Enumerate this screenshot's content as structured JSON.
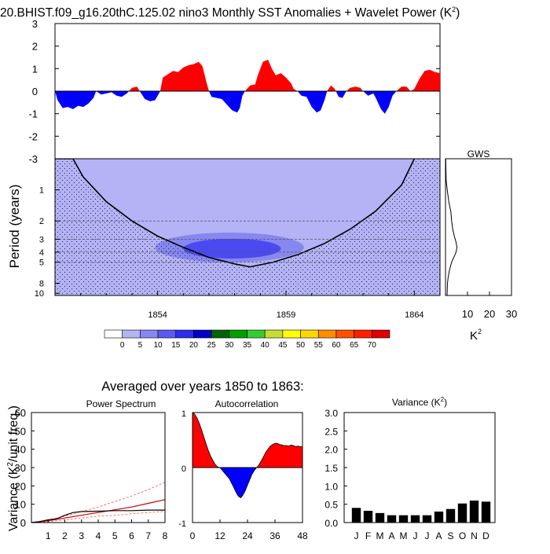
{
  "title": "20.BHIST.f09_g16.20thC.125.02 nino3 Monthly SST Anomalies + Wavelet Power (K",
  "title_sup": "2",
  "title_end": ")",
  "subtitle": "Averaged over years 1850 to 1863:",
  "chart_data": [
    {
      "id": "sst_anomaly",
      "type": "area",
      "x_range": [
        1850,
        1865
      ],
      "ylim": [
        -3,
        3
      ],
      "yticks": [
        "3",
        "2",
        "1",
        "0",
        "-1",
        "-2",
        "-3"
      ],
      "positive_color": "#ff0000",
      "negative_color": "#0000ff",
      "series": [
        [
          1850.0,
          0.0
        ],
        [
          1850.1,
          -0.4
        ],
        [
          1850.3,
          -0.75
        ],
        [
          1850.5,
          -0.7
        ],
        [
          1850.7,
          -0.8
        ],
        [
          1850.9,
          -0.65
        ],
        [
          1851.1,
          -0.7
        ],
        [
          1851.3,
          -0.55
        ],
        [
          1851.5,
          -0.3
        ],
        [
          1851.6,
          0.0
        ],
        [
          1851.8,
          -0.15
        ],
        [
          1852.0,
          -0.1
        ],
        [
          1852.2,
          -0.05
        ],
        [
          1852.4,
          -0.2
        ],
        [
          1852.6,
          -0.25
        ],
        [
          1852.8,
          -0.1
        ],
        [
          1853.0,
          0.15
        ],
        [
          1853.2,
          0.2
        ],
        [
          1853.3,
          0.0
        ],
        [
          1853.5,
          -0.35
        ],
        [
          1853.7,
          -0.45
        ],
        [
          1853.9,
          -0.4
        ],
        [
          1854.0,
          -0.2
        ],
        [
          1854.1,
          0.0
        ],
        [
          1854.2,
          0.6
        ],
        [
          1854.4,
          0.75
        ],
        [
          1854.6,
          0.9
        ],
        [
          1854.8,
          0.85
        ],
        [
          1855.0,
          1.05
        ],
        [
          1855.2,
          1.15
        ],
        [
          1855.4,
          1.2
        ],
        [
          1855.6,
          1.3
        ],
        [
          1855.75,
          1.1
        ],
        [
          1855.9,
          0.4
        ],
        [
          1856.0,
          0.0
        ],
        [
          1856.1,
          -0.25
        ],
        [
          1856.3,
          -0.3
        ],
        [
          1856.5,
          -0.35
        ],
        [
          1856.7,
          -0.6
        ],
        [
          1856.9,
          -0.85
        ],
        [
          1857.1,
          -0.95
        ],
        [
          1857.2,
          -0.75
        ],
        [
          1857.3,
          -0.2
        ],
        [
          1857.4,
          0.0
        ],
        [
          1857.6,
          0.25
        ],
        [
          1857.8,
          0.3
        ],
        [
          1857.9,
          0.7
        ],
        [
          1858.1,
          1.3
        ],
        [
          1858.3,
          1.4
        ],
        [
          1858.45,
          1.0
        ],
        [
          1858.6,
          0.7
        ],
        [
          1858.8,
          0.8
        ],
        [
          1859.0,
          0.6
        ],
        [
          1859.2,
          0.35
        ],
        [
          1859.3,
          0.1
        ],
        [
          1859.45,
          0.0
        ],
        [
          1859.6,
          -0.2
        ],
        [
          1859.8,
          -0.25
        ],
        [
          1860.0,
          -0.7
        ],
        [
          1860.2,
          -0.95
        ],
        [
          1860.35,
          -0.85
        ],
        [
          1860.5,
          -0.4
        ],
        [
          1860.6,
          0.0
        ],
        [
          1860.75,
          0.25
        ],
        [
          1860.9,
          0.1
        ],
        [
          1861.05,
          -0.25
        ],
        [
          1861.2,
          -0.3
        ],
        [
          1861.35,
          0.0
        ],
        [
          1861.5,
          0.15
        ],
        [
          1861.7,
          0.2
        ],
        [
          1861.9,
          0.15
        ],
        [
          1862.0,
          0.0
        ],
        [
          1862.2,
          -0.2
        ],
        [
          1862.4,
          -0.1
        ],
        [
          1862.5,
          -0.3
        ],
        [
          1862.7,
          -0.8
        ],
        [
          1862.85,
          -1.0
        ],
        [
          1863.0,
          -0.7
        ],
        [
          1863.15,
          -0.2
        ],
        [
          1863.3,
          0.0
        ],
        [
          1863.5,
          0.2
        ],
        [
          1863.7,
          0.2
        ],
        [
          1863.85,
          0.0
        ],
        [
          1864.0,
          0.1
        ],
        [
          1864.2,
          0.55
        ],
        [
          1864.4,
          0.9
        ],
        [
          1864.6,
          0.95
        ],
        [
          1864.8,
          0.85
        ],
        [
          1865.0,
          0.8
        ]
      ]
    },
    {
      "id": "wavelet_power",
      "type": "heatmap",
      "ylabel": "Period (years)",
      "x_range": [
        1850,
        1865
      ],
      "y_range_years": [
        0.5,
        10.5
      ],
      "y_log": true,
      "yticks": [
        1,
        2,
        3,
        4,
        5,
        8,
        10
      ],
      "xticks": [
        1854,
        1859,
        1864
      ],
      "background_level_color": "#b3b3f5",
      "cone_of_influence": [
        [
          1850.0,
          0.5
        ],
        [
          1850.7,
          0.5
        ],
        [
          1851.1,
          0.75
        ],
        [
          1852.0,
          1.3
        ],
        [
          1853.0,
          2.0
        ],
        [
          1854.0,
          2.8
        ],
        [
          1855.0,
          3.6
        ],
        [
          1856.0,
          4.5
        ],
        [
          1857.0,
          5.2
        ],
        [
          1857.6,
          5.55
        ],
        [
          1858.5,
          5.0
        ],
        [
          1859.5,
          4.2
        ],
        [
          1860.5,
          3.3
        ],
        [
          1861.5,
          2.4
        ],
        [
          1862.5,
          1.6
        ],
        [
          1863.5,
          0.9
        ],
        [
          1864.0,
          0.5
        ]
      ],
      "contours": [
        {
          "level": "5-10",
          "color": "#8787f0",
          "center": [
            1856.8,
            3.6
          ],
          "spread": [
            2.9,
            0.33
          ]
        },
        {
          "level": "10-15",
          "color": "#4a4af0",
          "center": [
            1856.9,
            3.7
          ],
          "spread": [
            1.9,
            0.22
          ]
        }
      ],
      "colorbar": {
        "labels": [
          "0",
          "5",
          "10",
          "15",
          "20",
          "25",
          "30",
          "35",
          "40",
          "45",
          "50",
          "55",
          "60",
          "65",
          "70"
        ],
        "colors": [
          "#ffffff",
          "#b3b3f5",
          "#8787f0",
          "#5a5af0",
          "#2d2df0",
          "#0000c8",
          "#006400",
          "#00a000",
          "#32cd32",
          "#c8dc32",
          "#ffff00",
          "#ffd700",
          "#ff8c00",
          "#ff5000",
          "#ff2000",
          "#e00000"
        ]
      }
    },
    {
      "id": "gws",
      "type": "line",
      "title": "GWS",
      "xlabel": "K",
      "xlabel_sup": "2",
      "xlim": [
        0,
        30
      ],
      "xticks": [
        "10",
        "20",
        "30"
      ],
      "series": [
        [
          0.5,
          0.1
        ],
        [
          0.8,
          0.3
        ],
        [
          1.0,
          0.8
        ],
        [
          1.3,
          1.5
        ],
        [
          1.6,
          2.4
        ],
        [
          2.0,
          2.8
        ],
        [
          2.4,
          3.3
        ],
        [
          2.8,
          4.0
        ],
        [
          3.2,
          4.8
        ],
        [
          3.6,
          5.2
        ],
        [
          4.0,
          4.8
        ],
        [
          4.5,
          3.8
        ],
        [
          5.0,
          2.8
        ],
        [
          6.0,
          1.8
        ],
        [
          7.0,
          1.2
        ],
        [
          8.0,
          0.9
        ],
        [
          10.5,
          0.7
        ]
      ]
    },
    {
      "id": "power_spectrum",
      "type": "line",
      "title": "Power Spectrum",
      "ylabel": "Variance (K",
      "ylabel_sup": "2",
      "ylabel_end": "/unit freq.)",
      "xlim": [
        0,
        8
      ],
      "ylim": [
        0,
        60
      ],
      "xticks": [
        "1",
        "2",
        "3",
        "4",
        "5",
        "6",
        "7",
        "8"
      ],
      "yticks": [
        "0",
        "10",
        "20",
        "30",
        "40",
        "50",
        "60"
      ],
      "series": [
        {
          "name": "spectrum",
          "color": "#000000",
          "dashed": false,
          "values": [
            [
              0.0,
              0.0
            ],
            [
              0.5,
              0.5
            ],
            [
              1.0,
              1.5
            ],
            [
              1.5,
              2.0
            ],
            [
              2.0,
              4.0
            ],
            [
              2.5,
              5.5
            ],
            [
              3.0,
              6.0
            ],
            [
              4.0,
              6.2
            ],
            [
              5.0,
              6.5
            ],
            [
              6.0,
              6.5
            ],
            [
              7.0,
              6.8
            ],
            [
              8.0,
              6.8
            ]
          ]
        },
        {
          "name": "red noise",
          "color": "#cc0000",
          "dashed": false,
          "values": [
            [
              0.0,
              0.0
            ],
            [
              1.0,
              1.0
            ],
            [
              2.0,
              2.5
            ],
            [
              3.0,
              4.0
            ],
            [
              4.0,
              5.5
            ],
            [
              5.0,
              7.0
            ],
            [
              6.0,
              8.5
            ],
            [
              7.0,
              10.5
            ],
            [
              8.0,
              12.5
            ]
          ]
        },
        {
          "name": "upper confidence",
          "color": "#ff5555",
          "dashed": true,
          "values": [
            [
              0.0,
              0.0
            ],
            [
              1.0,
              1.5
            ],
            [
              2.0,
              3.5
            ],
            [
              3.0,
              6.0
            ],
            [
              4.0,
              8.5
            ],
            [
              5.0,
              11.5
            ],
            [
              6.0,
              14.5
            ],
            [
              7.0,
              18.0
            ],
            [
              8.0,
              22.0
            ]
          ]
        },
        {
          "name": "lower confidence",
          "color": "#ff5555",
          "dashed": true,
          "values": [
            [
              0.0,
              0.0
            ],
            [
              1.0,
              0.5
            ],
            [
              2.0,
              1.5
            ],
            [
              3.0,
              2.5
            ],
            [
              4.0,
              3.5
            ],
            [
              5.0,
              4.0
            ],
            [
              6.0,
              4.8
            ],
            [
              7.0,
              5.5
            ],
            [
              8.0,
              6.0
            ]
          ]
        }
      ]
    },
    {
      "id": "autocorrelation",
      "type": "area",
      "title": "Autocorrelation",
      "xlim": [
        0,
        48
      ],
      "ylim": [
        -1,
        1
      ],
      "xticks": [
        "0",
        "12",
        "24",
        "36",
        "48"
      ],
      "yticks": [
        "1",
        "0",
        "-1"
      ],
      "positive_color": "#ff0000",
      "negative_color": "#0000ff",
      "values": [
        [
          0,
          1.0
        ],
        [
          1,
          0.97
        ],
        [
          2,
          0.9
        ],
        [
          3,
          0.8
        ],
        [
          4,
          0.68
        ],
        [
          5,
          0.55
        ],
        [
          6,
          0.42
        ],
        [
          7,
          0.3
        ],
        [
          8,
          0.2
        ],
        [
          9,
          0.12
        ],
        [
          10,
          0.05
        ],
        [
          11,
          0.01
        ],
        [
          12,
          0.0
        ],
        [
          13,
          -0.05
        ],
        [
          14,
          -0.1
        ],
        [
          15,
          -0.15
        ],
        [
          16,
          -0.2
        ],
        [
          17,
          -0.28
        ],
        [
          18,
          -0.36
        ],
        [
          19,
          -0.45
        ],
        [
          20,
          -0.52
        ],
        [
          21,
          -0.55
        ],
        [
          22,
          -0.5
        ],
        [
          23,
          -0.42
        ],
        [
          24,
          -0.32
        ],
        [
          25,
          -0.22
        ],
        [
          26,
          -0.12
        ],
        [
          27,
          -0.05
        ],
        [
          28,
          0.0
        ],
        [
          29,
          0.05
        ],
        [
          30,
          0.12
        ],
        [
          31,
          0.2
        ],
        [
          32,
          0.28
        ],
        [
          33,
          0.34
        ],
        [
          34,
          0.39
        ],
        [
          35,
          0.42
        ],
        [
          36,
          0.44
        ],
        [
          37,
          0.44
        ],
        [
          38,
          0.42
        ],
        [
          39,
          0.41
        ],
        [
          40,
          0.4
        ],
        [
          41,
          0.4
        ],
        [
          42,
          0.39
        ],
        [
          43,
          0.41
        ],
        [
          44,
          0.4
        ],
        [
          45,
          0.38
        ],
        [
          46,
          0.39
        ],
        [
          47,
          0.38
        ],
        [
          48,
          0.38
        ]
      ]
    },
    {
      "id": "monthly_variance",
      "type": "bar",
      "title": "Variance (K",
      "title_sup": "2",
      "title_end": ")",
      "categories": [
        "J",
        "F",
        "M",
        "A",
        "M",
        "J",
        "J",
        "A",
        "S",
        "O",
        "N",
        "D"
      ],
      "values": [
        0.4,
        0.32,
        0.26,
        0.2,
        0.2,
        0.2,
        0.2,
        0.3,
        0.37,
        0.52,
        0.6,
        0.57
      ],
      "ylim": [
        0,
        3
      ],
      "yticks": [
        "0.0",
        "0.5",
        "1.0",
        "1.5",
        "2.0",
        "2.5",
        "3.0"
      ],
      "bar_color": "#000000"
    }
  ]
}
